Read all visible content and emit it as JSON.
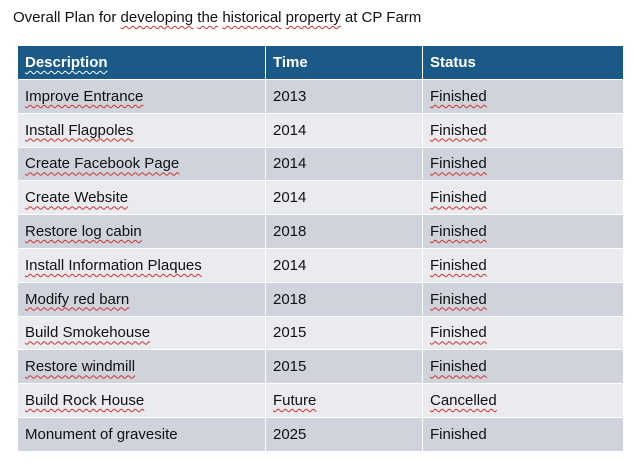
{
  "document": {
    "title": "Overall Plan for developing the historical property at CP Farm",
    "title_parts": [
      "Overall Plan for ",
      "developing",
      " ",
      "the",
      " ",
      "historical",
      " ",
      "property",
      " at CP Farm"
    ]
  },
  "table": {
    "headers": {
      "description": "Description",
      "time": "Time",
      "status": "Status"
    },
    "rows": [
      {
        "description": "Improve Entrance",
        "time": "2013",
        "status": "Finished"
      },
      {
        "description": "Install Flagpoles",
        "time": "2014",
        "status": "Finished"
      },
      {
        "description": "Create Facebook Page",
        "time": "2014",
        "status": "Finished"
      },
      {
        "description": "Create Website",
        "time": "2014",
        "status": "Finished"
      },
      {
        "description": "Restore log cabin",
        "time": "2018",
        "status": "Finished"
      },
      {
        "description": "Install Information Plaques",
        "time": "2014",
        "status": "Finished"
      },
      {
        "description": "Modify red barn",
        "time": "2018",
        "status": "Finished"
      },
      {
        "description": "Build Smokehouse",
        "time": "2015",
        "status": "Finished"
      },
      {
        "description": "Restore windmill",
        "time": "2015",
        "status": "Finished"
      },
      {
        "description": "Build Rock House",
        "time": "Future",
        "status": "Cancelled"
      },
      {
        "description": "Monument of gravesite",
        "time": "2025",
        "status": "Finished"
      }
    ]
  },
  "colors": {
    "header_bg": "#1b5a86",
    "row_band_dark": "#cfd3dc",
    "row_band_light": "#e9ebef",
    "spellcheck_underline": "#d0322d"
  }
}
